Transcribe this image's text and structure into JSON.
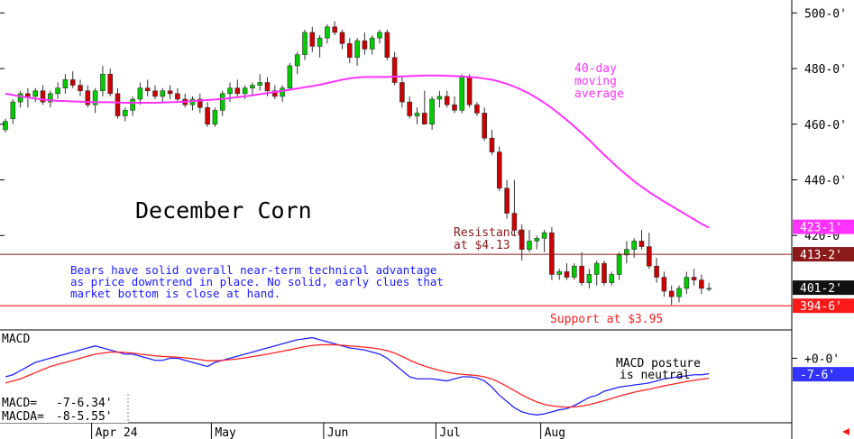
{
  "chart_data": {
    "type": "candlestick",
    "title": "December Corn",
    "price_axis": {
      "ticks": [
        "500-0'",
        "480-0'",
        "460-0'",
        "440-0'",
        "420-0'"
      ],
      "tick_values": [
        500,
        480,
        460,
        440,
        420
      ],
      "range": [
        388,
        504
      ]
    },
    "x_axis": {
      "labels": [
        "Apr 24",
        "May",
        "Jun",
        "Jul",
        "Aug"
      ],
      "label_index": [
        12,
        28,
        43,
        58,
        72
      ]
    },
    "candles": [
      {
        "o": 458,
        "h": 462,
        "l": 457,
        "c": 461
      },
      {
        "o": 462,
        "h": 469,
        "l": 460,
        "c": 468
      },
      {
        "o": 468,
        "h": 472,
        "l": 466,
        "c": 471
      },
      {
        "o": 471,
        "h": 473,
        "l": 466,
        "c": 470
      },
      {
        "o": 470,
        "h": 473,
        "l": 468,
        "c": 472
      },
      {
        "o": 472,
        "h": 474,
        "l": 467,
        "c": 468
      },
      {
        "o": 468,
        "h": 472,
        "l": 466,
        "c": 471
      },
      {
        "o": 471,
        "h": 475,
        "l": 469,
        "c": 473
      },
      {
        "o": 473,
        "h": 478,
        "l": 471,
        "c": 476
      },
      {
        "o": 476,
        "h": 479,
        "l": 473,
        "c": 474
      },
      {
        "o": 474,
        "h": 476,
        "l": 470,
        "c": 472
      },
      {
        "o": 472,
        "h": 474,
        "l": 466,
        "c": 467
      },
      {
        "o": 467,
        "h": 473,
        "l": 464,
        "c": 472
      },
      {
        "o": 472,
        "h": 481,
        "l": 470,
        "c": 478
      },
      {
        "o": 478,
        "h": 480,
        "l": 470,
        "c": 471
      },
      {
        "o": 471,
        "h": 473,
        "l": 462,
        "c": 463
      },
      {
        "o": 463,
        "h": 466,
        "l": 461,
        "c": 465
      },
      {
        "o": 465,
        "h": 470,
        "l": 463,
        "c": 469
      },
      {
        "o": 469,
        "h": 475,
        "l": 467,
        "c": 473
      },
      {
        "o": 473,
        "h": 476,
        "l": 470,
        "c": 472
      },
      {
        "o": 472,
        "h": 474,
        "l": 469,
        "c": 470
      },
      {
        "o": 470,
        "h": 473,
        "l": 468,
        "c": 472
      },
      {
        "o": 472,
        "h": 474,
        "l": 469,
        "c": 471
      },
      {
        "o": 471,
        "h": 473,
        "l": 468,
        "c": 469
      },
      {
        "o": 469,
        "h": 471,
        "l": 466,
        "c": 467
      },
      {
        "o": 467,
        "h": 470,
        "l": 465,
        "c": 469
      },
      {
        "o": 469,
        "h": 471,
        "l": 464,
        "c": 466
      },
      {
        "o": 466,
        "h": 468,
        "l": 459,
        "c": 460
      },
      {
        "o": 460,
        "h": 466,
        "l": 459,
        "c": 465
      },
      {
        "o": 465,
        "h": 472,
        "l": 463,
        "c": 471
      },
      {
        "o": 471,
        "h": 475,
        "l": 468,
        "c": 473
      },
      {
        "o": 473,
        "h": 476,
        "l": 470,
        "c": 471
      },
      {
        "o": 471,
        "h": 474,
        "l": 469,
        "c": 473
      },
      {
        "o": 473,
        "h": 475,
        "l": 470,
        "c": 474
      },
      {
        "o": 474,
        "h": 478,
        "l": 472,
        "c": 475
      },
      {
        "o": 475,
        "h": 477,
        "l": 470,
        "c": 472
      },
      {
        "o": 472,
        "h": 474,
        "l": 469,
        "c": 470
      },
      {
        "o": 470,
        "h": 474,
        "l": 468,
        "c": 473
      },
      {
        "o": 473,
        "h": 482,
        "l": 472,
        "c": 481
      },
      {
        "o": 481,
        "h": 486,
        "l": 478,
        "c": 485
      },
      {
        "o": 485,
        "h": 494,
        "l": 483,
        "c": 493
      },
      {
        "o": 493,
        "h": 495,
        "l": 486,
        "c": 488
      },
      {
        "o": 488,
        "h": 492,
        "l": 484,
        "c": 491
      },
      {
        "o": 491,
        "h": 496,
        "l": 489,
        "c": 495
      },
      {
        "o": 495,
        "h": 497,
        "l": 492,
        "c": 493
      },
      {
        "o": 493,
        "h": 494,
        "l": 487,
        "c": 489
      },
      {
        "o": 489,
        "h": 491,
        "l": 482,
        "c": 484
      },
      {
        "o": 484,
        "h": 491,
        "l": 481,
        "c": 490
      },
      {
        "o": 490,
        "h": 493,
        "l": 485,
        "c": 487
      },
      {
        "o": 487,
        "h": 492,
        "l": 485,
        "c": 491
      },
      {
        "o": 491,
        "h": 494,
        "l": 489,
        "c": 493
      },
      {
        "o": 493,
        "h": 494,
        "l": 483,
        "c": 484
      },
      {
        "o": 484,
        "h": 486,
        "l": 474,
        "c": 475
      },
      {
        "o": 475,
        "h": 477,
        "l": 466,
        "c": 468
      },
      {
        "o": 468,
        "h": 470,
        "l": 462,
        "c": 463
      },
      {
        "o": 463,
        "h": 466,
        "l": 460,
        "c": 464
      },
      {
        "o": 464,
        "h": 472,
        "l": 460,
        "c": 460
      },
      {
        "o": 460,
        "h": 470,
        "l": 458,
        "c": 469
      },
      {
        "o": 469,
        "h": 472,
        "l": 466,
        "c": 470
      },
      {
        "o": 470,
        "h": 472,
        "l": 466,
        "c": 467
      },
      {
        "o": 467,
        "h": 470,
        "l": 464,
        "c": 465
      },
      {
        "o": 465,
        "h": 478,
        "l": 464,
        "c": 477
      },
      {
        "o": 477,
        "h": 478,
        "l": 466,
        "c": 467
      },
      {
        "o": 467,
        "h": 468,
        "l": 463,
        "c": 464
      },
      {
        "o": 464,
        "h": 466,
        "l": 454,
        "c": 455
      },
      {
        "o": 455,
        "h": 458,
        "l": 449,
        "c": 450
      },
      {
        "o": 450,
        "h": 452,
        "l": 436,
        "c": 437
      },
      {
        "o": 437,
        "h": 440,
        "l": 426,
        "c": 428
      },
      {
        "o": 428,
        "h": 440,
        "l": 420,
        "c": 422
      },
      {
        "o": 422,
        "h": 424,
        "l": 411,
        "c": 415
      },
      {
        "o": 415,
        "h": 422,
        "l": 414,
        "c": 418
      },
      {
        "o": 418,
        "h": 420,
        "l": 415,
        "c": 419
      },
      {
        "o": 419,
        "h": 422,
        "l": 414,
        "c": 421
      },
      {
        "o": 421,
        "h": 423,
        "l": 404,
        "c": 406
      },
      {
        "o": 406,
        "h": 408,
        "l": 404,
        "c": 407
      },
      {
        "o": 407,
        "h": 410,
        "l": 404,
        "c": 405
      },
      {
        "o": 405,
        "h": 410,
        "l": 404,
        "c": 409
      },
      {
        "o": 409,
        "h": 414,
        "l": 402,
        "c": 403
      },
      {
        "o": 403,
        "h": 408,
        "l": 401,
        "c": 406
      },
      {
        "o": 406,
        "h": 411,
        "l": 402,
        "c": 410
      },
      {
        "o": 410,
        "h": 411,
        "l": 402,
        "c": 403
      },
      {
        "o": 403,
        "h": 407,
        "l": 402,
        "c": 406
      },
      {
        "o": 406,
        "h": 414,
        "l": 404,
        "c": 413
      },
      {
        "o": 413,
        "h": 418,
        "l": 410,
        "c": 415
      },
      {
        "o": 415,
        "h": 419,
        "l": 412,
        "c": 418
      },
      {
        "o": 418,
        "h": 422,
        "l": 415,
        "c": 416
      },
      {
        "o": 416,
        "h": 421,
        "l": 408,
        "c": 409
      },
      {
        "o": 409,
        "h": 412,
        "l": 403,
        "c": 405
      },
      {
        "o": 405,
        "h": 407,
        "l": 398,
        "c": 400
      },
      {
        "o": 400,
        "h": 402,
        "l": 395,
        "c": 398
      },
      {
        "o": 398,
        "h": 402,
        "l": 396,
        "c": 401
      },
      {
        "o": 401,
        "h": 407,
        "l": 399,
        "c": 405
      },
      {
        "o": 405,
        "h": 408,
        "l": 402,
        "c": 404
      },
      {
        "o": 404,
        "h": 406,
        "l": 399,
        "c": 401
      },
      {
        "o": 401,
        "h": 403,
        "l": 400,
        "c": 401
      }
    ],
    "moving_average": {
      "name": "40-day moving average",
      "values": [
        471,
        470.5,
        470,
        469.6,
        469.2,
        468.9,
        468.6,
        468.4,
        468.3,
        468.2,
        468.1,
        468,
        467.9,
        467.9,
        467.9,
        467.8,
        467.7,
        467.7,
        467.7,
        467.7,
        467.7,
        467.8,
        467.9,
        468,
        468.1,
        468.3,
        468.5,
        468.7,
        468.9,
        469.1,
        469.4,
        469.7,
        470,
        470.4,
        470.8,
        471.2,
        471.6,
        472,
        472.4,
        472.8,
        473.3,
        473.7,
        474.2,
        474.8,
        475.4,
        476,
        476.5,
        476.8,
        477,
        477,
        477,
        477,
        477.1,
        477.2,
        477.3,
        477.4,
        477.5,
        477.5,
        477.5,
        477.4,
        477.3,
        477.2,
        477,
        476.8,
        476.4,
        476,
        475.3,
        474.5,
        473.5,
        472.3,
        471,
        469.4,
        467.7,
        465.8,
        463.7,
        461.5,
        459.2,
        456.8,
        454.3,
        451.6,
        449,
        446.5,
        444,
        441.7,
        439.5,
        437.5,
        435.6,
        433.9,
        432.2,
        430.6,
        429,
        427.4,
        425.8,
        424.2,
        422.8
      ]
    },
    "resistance": {
      "value": 413.25,
      "label_line1": "Resistance",
      "label_line2": "at $4.13"
    },
    "support": {
      "value": 394.75,
      "label": "Support at $3.95"
    },
    "price_badges": [
      {
        "text": "423-1'",
        "value": 423.125,
        "color": "#ff33ff"
      },
      {
        "text": "413-2'",
        "value": 413.25,
        "color": "#8b1a1a"
      },
      {
        "text": "401-2'",
        "value": 401.25,
        "color": "#111111"
      },
      {
        "text": "394-6'",
        "value": 394.75,
        "color": "#ff1a1a"
      }
    ],
    "ma_annotation": [
      "40-day",
      "moving",
      "average"
    ],
    "commentary": [
      "Bears have solid overall near-term technical advantage",
      "as price downtrend in place. No solid, early clues that",
      "market bottom is close at hand."
    ],
    "macd": {
      "title": "MACD",
      "axis_label": "+0-0'",
      "axis_label_value": 0,
      "range": [
        -30,
        12
      ],
      "macd_values": [
        -9,
        -8,
        -6,
        -4,
        -2,
        -1,
        0,
        1,
        2,
        3,
        4,
        5,
        6,
        5,
        4,
        3,
        2,
        2,
        1,
        0,
        -1,
        -1,
        0,
        0,
        -1,
        -2,
        -3,
        -4,
        -2,
        -1,
        0,
        1,
        2,
        3,
        4,
        5,
        6,
        7,
        8,
        9,
        9.5,
        10,
        9,
        8,
        7,
        6,
        5,
        4.5,
        4,
        3,
        2,
        0,
        -3,
        -6,
        -9,
        -10,
        -10,
        -10,
        -10.5,
        -11,
        -10,
        -9,
        -9,
        -9.5,
        -11,
        -14,
        -18,
        -21,
        -24,
        -26,
        -27,
        -27.5,
        -27,
        -26,
        -25,
        -24.5,
        -23,
        -21,
        -19,
        -18,
        -16,
        -15,
        -14,
        -13.5,
        -13,
        -12.5,
        -12,
        -11,
        -10,
        -9.5,
        -9,
        -8.5,
        -8,
        -8,
        -7.5
      ],
      "signal_values": [
        -12,
        -11,
        -10,
        -8.5,
        -7,
        -5.5,
        -4,
        -3,
        -2,
        -1,
        0,
        1,
        2,
        2.5,
        3,
        3,
        2.8,
        2.5,
        2,
        1.6,
        1.2,
        0.9,
        0.7,
        0.5,
        0.2,
        -0.2,
        -0.7,
        -1.2,
        -1.2,
        -1,
        -0.7,
        -0.3,
        0.2,
        0.8,
        1.4,
        2,
        2.7,
        3.4,
        4.1,
        4.9,
        5.6,
        6.2,
        6.5,
        6.6,
        6.5,
        6.3,
        6,
        5.7,
        5.4,
        5,
        4.5,
        3.7,
        2.5,
        0.9,
        -0.9,
        -2.5,
        -3.8,
        -4.9,
        -5.9,
        -6.8,
        -7.4,
        -7.8,
        -8.1,
        -8.4,
        -9,
        -10.1,
        -11.7,
        -13.6,
        -15.7,
        -17.8,
        -19.6,
        -21.2,
        -22.4,
        -23.1,
        -23.5,
        -23.7,
        -23.6,
        -23.2,
        -22.5,
        -21.6,
        -20.6,
        -19.5,
        -18.4,
        -17.4,
        -16.5,
        -15.7,
        -15,
        -14.2,
        -13.4,
        -12.7,
        -12,
        -11.3,
        -10.7,
        -10.2,
        -9.7
      ],
      "badge": {
        "text": "-7-6'",
        "value": -7.75,
        "color": "#3333ff"
      },
      "readout": [
        {
          "label": "MACD=",
          "value": "-7-6.34'"
        },
        {
          "label": "MACDA=",
          "value": "-8-5.55'"
        }
      ],
      "annotation": [
        "MACD posture",
        "is neutral"
      ]
    },
    "colors": {
      "up": "#00cc00",
      "down": "#cc0000",
      "moving_average": "#ff33ff",
      "resistance": "#8b1a1a",
      "support": "#ff1a1a",
      "commentary": "#1a1aff",
      "macd": "#2222ff",
      "signal": "#ff2222"
    },
    "grid": false,
    "legend": "none"
  }
}
